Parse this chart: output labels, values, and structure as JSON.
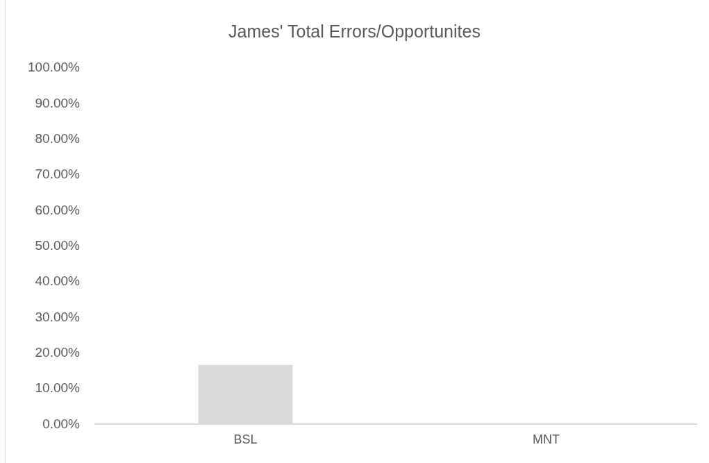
{
  "chart_data": {
    "type": "bar",
    "title": "James' Total Errors/Opportunites",
    "categories": [
      "BSL",
      "MNT"
    ],
    "values": [
      16.7,
      0
    ],
    "color": "#d9d9d9",
    "ylim": [
      0,
      100
    ],
    "yticks": [
      {
        "value": 0,
        "label": "0.00%"
      },
      {
        "value": 10,
        "label": "10.00%"
      },
      {
        "value": 20,
        "label": "20.00%"
      },
      {
        "value": 30,
        "label": "30.00%"
      },
      {
        "value": 40,
        "label": "40.00%"
      },
      {
        "value": 50,
        "label": "50.00%"
      },
      {
        "value": 60,
        "label": "60.00%"
      },
      {
        "value": 70,
        "label": "70.00%"
      },
      {
        "value": 80,
        "label": "80.00%"
      },
      {
        "value": 90,
        "label": "90.00%"
      },
      {
        "value": 100,
        "label": "100.00%"
      }
    ]
  }
}
